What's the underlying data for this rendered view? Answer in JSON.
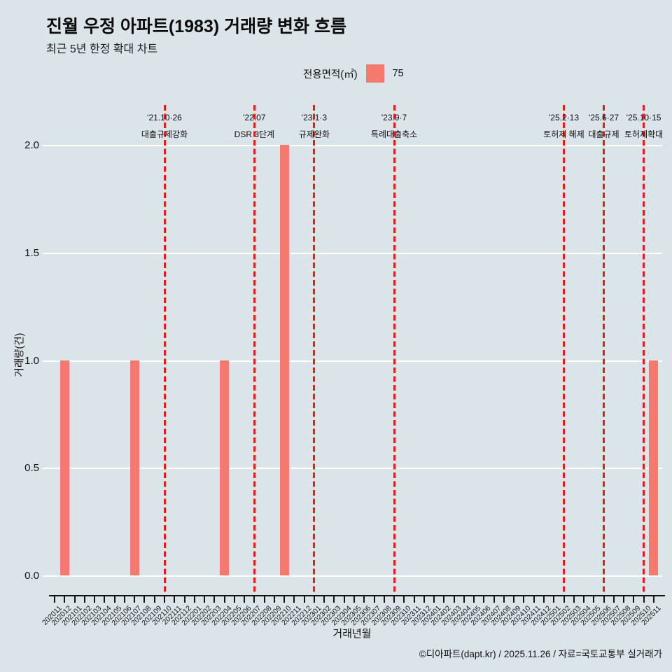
{
  "page": {
    "background": "#dbe4e9"
  },
  "header": {
    "title": "진월 우정 아파트(1983) 거래량 변화 흐름",
    "subtitle": "최근 5년 한정 확대 차트"
  },
  "legend": {
    "title": "전용면적(㎡)",
    "series_label": "75",
    "swatch_color": "#f5796d"
  },
  "chart_data": {
    "type": "bar",
    "title": "진월 우정 아파트(1983) 거래량 변화 흐름",
    "subtitle": "최근 5년 한정 확대 차트",
    "xlabel": "거래년월",
    "ylabel": "거래량(건)",
    "ylim": [
      0,
      2.05
    ],
    "yticks": [
      "0.0",
      "0.5",
      "1.0",
      "1.5",
      "2.0"
    ],
    "grid": true,
    "legend_position": "top-center",
    "bar_color": "#f5796d",
    "event_line_color": "#e31f1c",
    "gridline_color": "#ffffff",
    "categories": [
      "202011",
      "202012",
      "202101",
      "202102",
      "202103",
      "202104",
      "202105",
      "202106",
      "202107",
      "202108",
      "202109",
      "202110",
      "202111",
      "202112",
      "202201",
      "202202",
      "202203",
      "202204",
      "202205",
      "202206",
      "202207",
      "202208",
      "202209",
      "202210",
      "202211",
      "202212",
      "202301",
      "202302",
      "202303",
      "202304",
      "202305",
      "202306",
      "202307",
      "202308",
      "202309",
      "202310",
      "202311",
      "202312",
      "202401",
      "202402",
      "202403",
      "202404",
      "202405",
      "202406",
      "202407",
      "202408",
      "202409",
      "202410",
      "202411",
      "202412",
      "202501",
      "202502",
      "202503",
      "202504",
      "202505",
      "202506",
      "202507",
      "202508",
      "202509",
      "202510",
      "202511"
    ],
    "values": [
      0,
      1,
      0,
      0,
      0,
      0,
      0,
      0,
      1,
      0,
      0,
      0,
      0,
      0,
      0,
      0,
      0,
      1,
      0,
      0,
      0,
      0,
      0,
      2,
      0,
      0,
      0,
      0,
      0,
      0,
      0,
      0,
      0,
      0,
      0,
      0,
      0,
      0,
      0,
      0,
      0,
      0,
      0,
      0,
      0,
      0,
      0,
      0,
      0,
      0,
      0,
      0,
      0,
      0,
      0,
      0,
      0,
      0,
      0,
      0,
      1
    ],
    "events": [
      {
        "month": "202110",
        "date": "'21.10·26",
        "label": "대출규제강화"
      },
      {
        "month": "202207",
        "date": "'22.07",
        "label": "DSR 3단계"
      },
      {
        "month": "202301",
        "date": "'23.1·3",
        "label": "규제완화"
      },
      {
        "month": "202309",
        "date": "'23.9·7",
        "label": "특례대출축소"
      },
      {
        "month": "202502",
        "date": "'25.2·13",
        "label": "토허제 해제"
      },
      {
        "month": "202506",
        "date": "'25.6·27",
        "label": "대출규제"
      },
      {
        "month": "202510",
        "date": "'25.10·15",
        "label": "토허제확대"
      }
    ]
  },
  "footer": {
    "credit": "©디아파트(dapt.kr) / 2025.11.26 / 자료=국토교통부 실거래가"
  }
}
